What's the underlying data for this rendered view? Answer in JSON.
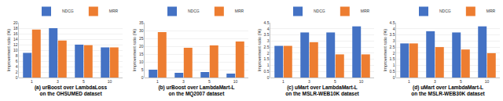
{
  "chart_data": [
    {
      "type": "bar",
      "title": "(a) urBoost over LambdaLoss on the OHSUMED dataset",
      "y_label": "Improvement ratio (%)",
      "categories": [
        "1",
        "3",
        "5",
        "10"
      ],
      "series": [
        {
          "name": "NDCG",
          "color": "#4472c4",
          "values": [
            9,
            18,
            12,
            11
          ]
        },
        {
          "name": "MRR",
          "color": "#ed7d31",
          "values": [
            17.5,
            13.5,
            11.8,
            11
          ]
        }
      ],
      "ylim": [
        0,
        20
      ],
      "yticks": [
        0,
        2,
        4,
        6,
        8,
        10,
        12,
        14,
        16,
        18,
        20
      ],
      "grid": true,
      "legend": "top right"
    },
    {
      "type": "bar",
      "title": "(b) urBoost over LambdaMart-L on the MQ2007 dataset",
      "y_label": "Improvement ratio (%)",
      "categories": [
        "1",
        "3",
        "5",
        "10"
      ],
      "series": [
        {
          "name": "NDCG",
          "color": "#4472c4",
          "values": [
            5,
            3,
            3.5,
            2.5
          ]
        },
        {
          "name": "MRR",
          "color": "#ed7d31",
          "values": [
            29,
            19,
            20.5,
            23
          ]
        }
      ],
      "ylim": [
        0,
        35
      ],
      "yticks": [
        0,
        5,
        10,
        15,
        20,
        25,
        30,
        35
      ],
      "grid": true,
      "legend": "top right"
    },
    {
      "type": "bar",
      "title": "(c) uMart over LambdaMart-L on the MSLR-WEB10K dataset",
      "y_label": "Improvement ratio (%)",
      "categories": [
        "1",
        "3",
        "5",
        "10"
      ],
      "series": [
        {
          "name": "NDCG",
          "color": "#4472c4",
          "values": [
            2.6,
            3.7,
            3.7,
            4.2
          ]
        },
        {
          "name": "MRR",
          "color": "#ed7d31",
          "values": [
            2.6,
            2.9,
            1.9,
            1.9
          ]
        }
      ],
      "ylim": [
        0,
        4.5
      ],
      "yticks": [
        0,
        0.5,
        1,
        1.5,
        2,
        2.5,
        3,
        3.5,
        4,
        4.5
      ],
      "grid": true,
      "legend": "top right"
    },
    {
      "type": "bar",
      "title": "(d) uMart over LambdaMart-L on the MSLR-WEB30K dataset",
      "y_label": "Improvement ratio (%)",
      "categories": [
        "1",
        "3",
        "5",
        "10"
      ],
      "series": [
        {
          "name": "NDCG",
          "color": "#4472c4",
          "values": [
            2.8,
            3.8,
            3.7,
            4.2
          ]
        },
        {
          "name": "MRR",
          "color": "#ed7d31",
          "values": [
            2.8,
            2.5,
            2.3,
            2.0
          ]
        }
      ],
      "ylim": [
        0,
        4.5
      ],
      "yticks": [
        0,
        0.5,
        1,
        1.5,
        2,
        2.5,
        3,
        3.5,
        4,
        4.5
      ],
      "grid": true,
      "legend": "top right"
    }
  ]
}
